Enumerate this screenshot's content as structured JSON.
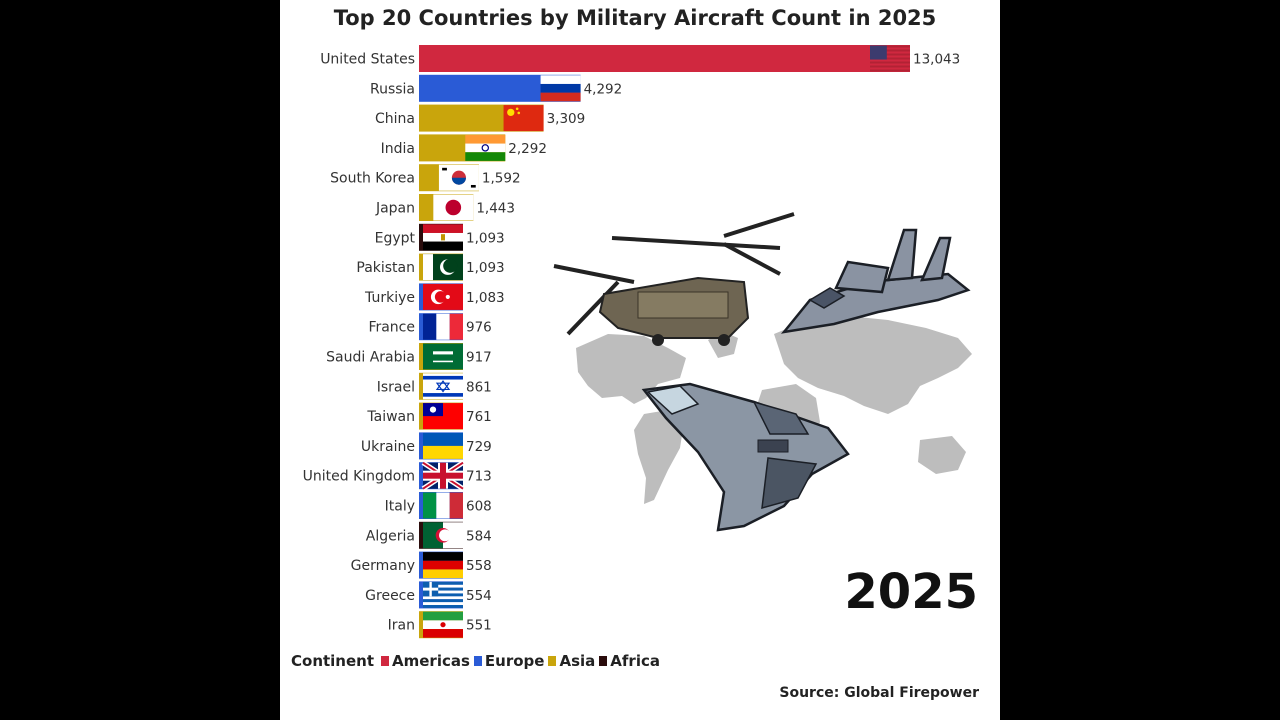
{
  "chart_data": {
    "type": "bar",
    "orientation": "horizontal",
    "title": "Top 20 Countries by Military Aircraft Count in 2025",
    "categories": [
      "United States",
      "Russia",
      "China",
      "India",
      "South Korea",
      "Japan",
      "Egypt",
      "Pakistan",
      "Turkiye",
      "France",
      "Saudi Arabia",
      "Israel",
      "Taiwan",
      "Ukraine",
      "United Kingdom",
      "Italy",
      "Algeria",
      "Germany",
      "Greece",
      "Iran"
    ],
    "values": [
      13043,
      4292,
      3309,
      2292,
      1592,
      1443,
      1093,
      1093,
      1083,
      976,
      917,
      861,
      761,
      729,
      713,
      608,
      584,
      558,
      554,
      551
    ],
    "value_labels": [
      "13,043",
      "4,292",
      "3,309",
      "2,292",
      "1,592",
      "1,443",
      "1,093",
      "1,093",
      "1,083",
      "976",
      "917",
      "861",
      "761",
      "729",
      "713",
      "608",
      "584",
      "558",
      "554",
      "551"
    ],
    "continent": [
      "Americas",
      "Europe",
      "Asia",
      "Asia",
      "Asia",
      "Asia",
      "Africa",
      "Asia",
      "Europe",
      "Europe",
      "Asia",
      "Asia",
      "Asia",
      "Europe",
      "Europe",
      "Europe",
      "Africa",
      "Europe",
      "Europe",
      "Asia"
    ],
    "flags": [
      "us-flag",
      "russia-flag",
      "china-flag",
      "india-flag",
      "south-korea-flag",
      "japan-flag",
      "egypt-flag",
      "pakistan-flag",
      "turkiye-flag",
      "france-flag",
      "saudi-arabia-flag",
      "israel-flag",
      "taiwan-flag",
      "ukraine-flag",
      "united-kingdom-flag",
      "italy-flag",
      "algeria-flag",
      "germany-flag",
      "greece-flag",
      "iran-flag"
    ],
    "xlim": [
      0,
      13043
    ],
    "grid": false,
    "legend": {
      "title": "Continent",
      "placement": "bottom-left",
      "entries": [
        {
          "name": "Americas",
          "color": "#d0283f"
        },
        {
          "name": "Europe",
          "color": "#2a5bd6"
        },
        {
          "name": "Asia",
          "color": "#c9a50c"
        },
        {
          "name": "Africa",
          "color": "#2a0c0c"
        }
      ]
    }
  },
  "colors": {
    "Americas": "#d0283f",
    "Europe": "#2a5bd6",
    "Asia": "#c9a50c",
    "Africa": "#2a0c0c"
  },
  "year": "2025",
  "source": "Source: Global Firepower",
  "illustration": {
    "icons": [
      "world-map-icon",
      "helicopter-icon",
      "fighter-jet-icon",
      "stealth-fighter-icon"
    ]
  }
}
